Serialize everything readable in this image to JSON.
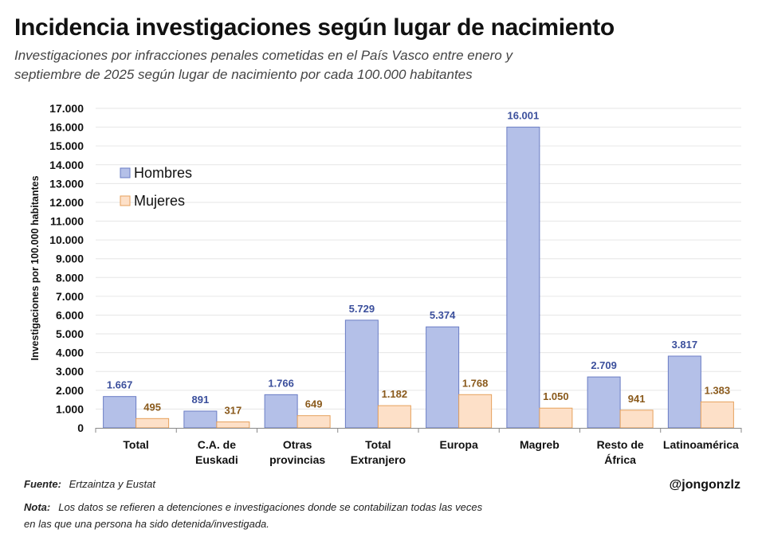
{
  "header": {
    "title": "Incidencia investigaciones según lugar de nacimiento",
    "subtitle_line1": "Investigaciones por infracciones penales cometidas en el País Vasco entre enero y",
    "subtitle_line2": "septiembre de 2025 según lugar de nacimiento por cada 100.000 habitantes"
  },
  "chart_data": {
    "type": "bar",
    "title": "Incidencia investigaciones según lugar de nacimiento",
    "ylabel": "Investigaciones por 100.000 habitantes",
    "xlabel": "",
    "ylim": [
      0,
      17000
    ],
    "y_tick_step": 1000,
    "y_tick_labels": [
      "0",
      "1.000",
      "2.000",
      "3.000",
      "4.000",
      "5.000",
      "6.000",
      "7.000",
      "8.000",
      "9.000",
      "10.000",
      "11.000",
      "12.000",
      "13.000",
      "14.000",
      "15.000",
      "16.000",
      "17.000"
    ],
    "grid": true,
    "legend_position": "upper-left",
    "categories": [
      [
        "Total"
      ],
      [
        "C.A. de",
        "Euskadi"
      ],
      [
        "Otras",
        "provincias"
      ],
      [
        "Total",
        "Extranjero"
      ],
      [
        "Europa"
      ],
      [
        "Magreb"
      ],
      [
        "Resto de",
        "África"
      ],
      [
        "Latinoamérica"
      ]
    ],
    "series": [
      {
        "name": "Hombres",
        "fill": "#b4c0e8",
        "stroke": "#6a7cc4",
        "label_color": "#3b4f9c",
        "values": [
          1667,
          891,
          1766,
          5729,
          5374,
          16001,
          2709,
          3817
        ],
        "labels": [
          "1.667",
          "891",
          "1.766",
          "5.729",
          "5.374",
          "16.001",
          "2.709",
          "3.817"
        ]
      },
      {
        "name": "Mujeres",
        "fill": "#fde0c8",
        "stroke": "#e6a15c",
        "label_color": "#8a5a1c",
        "values": [
          495,
          317,
          649,
          1182,
          1768,
          1050,
          941,
          1383
        ],
        "labels": [
          "495",
          "317",
          "649",
          "1.182",
          "1.768",
          "1.050",
          "941",
          "1.383"
        ]
      }
    ]
  },
  "footer": {
    "source_label": "Fuente:",
    "source_text": "Ertzaintza y Eustat",
    "note_label": "Nota:",
    "note_text": "Los datos se refieren a detenciones e investigaciones donde se contabilizan todas las veces en las que una persona ha sido detenida/investigada.",
    "handle": "@jongonzlz"
  }
}
